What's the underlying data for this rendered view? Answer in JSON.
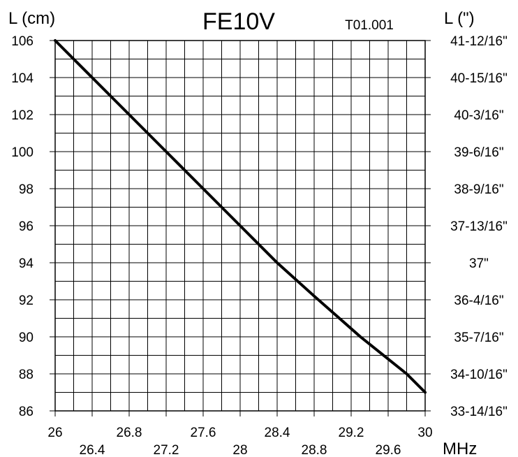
{
  "chart_data": {
    "type": "line",
    "title": "FE10V",
    "subtitle": "T01.001",
    "ylabel": "L (cm)",
    "y2label": "L (\")",
    "xlabel": "MHz",
    "xlim": [
      26,
      30
    ],
    "ylim": [
      86,
      106
    ],
    "grid": true,
    "x_ticks_upper": [
      "26",
      "26.8",
      "27.6",
      "28.4",
      "29.2",
      "30"
    ],
    "x_ticks_upper_values": [
      26,
      26.8,
      27.6,
      28.4,
      29.2,
      30
    ],
    "x_ticks_lower": [
      "26.4",
      "27.2",
      "28",
      "28.8",
      "29.6"
    ],
    "x_ticks_lower_values": [
      26.4,
      27.2,
      28,
      28.8,
      29.6
    ],
    "y_ticks": [
      "106",
      "104",
      "102",
      "100",
      "98",
      "96",
      "94",
      "92",
      "90",
      "88",
      "86"
    ],
    "y_ticks_values": [
      106,
      104,
      102,
      100,
      98,
      96,
      94,
      92,
      90,
      88,
      86
    ],
    "y2_ticks": [
      "41-12/16\"",
      "40-15/16\"",
      "40-3/16\"",
      "39-6/16\"",
      "38-9/16\"",
      "37-13/16\"",
      "37\"",
      "36-4/16\"",
      "35-7/16\"",
      "34-10/16\"",
      "33-14/16\""
    ],
    "series": [
      {
        "x": [
          26.0,
          26.4,
          26.8,
          27.2,
          27.6,
          28.0,
          28.4,
          28.8,
          29.3,
          29.8,
          30.0
        ],
        "y": [
          106,
          104,
          102,
          100,
          98,
          96,
          94,
          92.2,
          90,
          88,
          87
        ]
      }
    ]
  }
}
